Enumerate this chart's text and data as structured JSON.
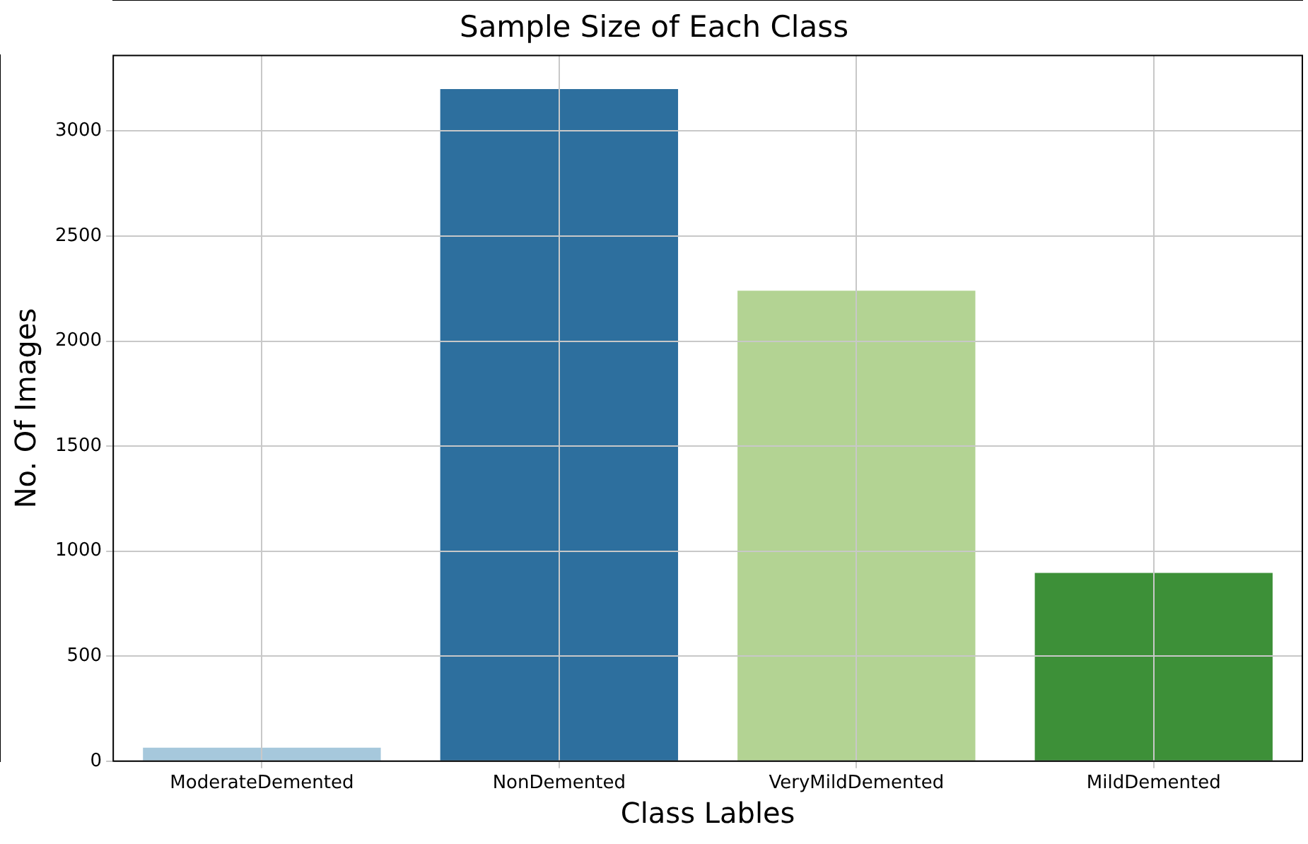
{
  "chart_data": {
    "type": "bar",
    "title": "Sample Size of Each Class",
    "xlabel": "Class Lables",
    "ylabel": "No. Of Images",
    "categories": [
      "ModerateDemented",
      "NonDemented",
      "VeryMildDemented",
      "MildDemented"
    ],
    "values": [
      64,
      3200,
      2240,
      896
    ],
    "colors": [
      "#a6c8dc",
      "#2d6f9e",
      "#b3d393",
      "#3d9038"
    ],
    "ylim": [
      0,
      3360
    ],
    "yticks": [
      0,
      500,
      1000,
      1500,
      2000,
      2500,
      3000
    ],
    "grid": true
  }
}
